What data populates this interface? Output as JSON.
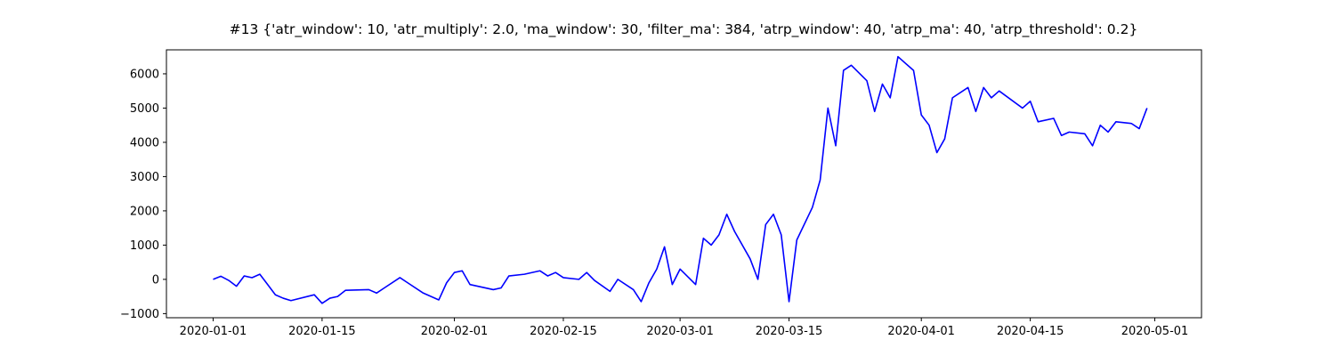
{
  "chart_data": {
    "type": "line",
    "title": "#13 {'atr_window': 10, 'atr_multiply': 2.0, 'ma_window': 30, 'filter_ma': 384, 'atrp_window': 40, 'atrp_ma': 40, 'atrp_threshold': 0.2}",
    "x": [
      "2020-01-01",
      "2020-01-02",
      "2020-01-03",
      "2020-01-04",
      "2020-01-05",
      "2020-01-06",
      "2020-01-07",
      "2020-01-08",
      "2020-01-09",
      "2020-01-10",
      "2020-01-11",
      "2020-01-14",
      "2020-01-15",
      "2020-01-16",
      "2020-01-17",
      "2020-01-18",
      "2020-01-21",
      "2020-01-22",
      "2020-01-23",
      "2020-01-25",
      "2020-01-26",
      "2020-01-28",
      "2020-01-30",
      "2020-01-31",
      "2020-02-01",
      "2020-02-02",
      "2020-02-03",
      "2020-02-06",
      "2020-02-07",
      "2020-02-08",
      "2020-02-10",
      "2020-02-12",
      "2020-02-13",
      "2020-02-14",
      "2020-02-15",
      "2020-02-17",
      "2020-02-18",
      "2020-02-19",
      "2020-02-21",
      "2020-02-22",
      "2020-02-24",
      "2020-02-25",
      "2020-02-26",
      "2020-02-27",
      "2020-02-28",
      "2020-02-29",
      "2020-03-01",
      "2020-03-03",
      "2020-03-04",
      "2020-03-05",
      "2020-03-06",
      "2020-03-07",
      "2020-03-08",
      "2020-03-10",
      "2020-03-11",
      "2020-03-12",
      "2020-03-13",
      "2020-03-14",
      "2020-03-15",
      "2020-03-16",
      "2020-03-18",
      "2020-03-19",
      "2020-03-20",
      "2020-03-21",
      "2020-03-22",
      "2020-03-23",
      "2020-03-25",
      "2020-03-26",
      "2020-03-27",
      "2020-03-28",
      "2020-03-29",
      "2020-03-31",
      "2020-04-01",
      "2020-04-02",
      "2020-04-03",
      "2020-04-04",
      "2020-04-05",
      "2020-04-07",
      "2020-04-08",
      "2020-04-09",
      "2020-04-10",
      "2020-04-11",
      "2020-04-14",
      "2020-04-15",
      "2020-04-16",
      "2020-04-18",
      "2020-04-19",
      "2020-04-20",
      "2020-04-22",
      "2020-04-23",
      "2020-04-24",
      "2020-04-25",
      "2020-04-26",
      "2020-04-28",
      "2020-04-29",
      "2020-04-30"
    ],
    "series": [
      {
        "color": "#0000ff",
        "values": [
          0,
          90,
          -30,
          -200,
          100,
          50,
          150,
          -150,
          -450,
          -550,
          -620,
          -450,
          -700,
          -550,
          -500,
          -320,
          -300,
          -400,
          -250,
          50,
          -100,
          -400,
          -600,
          -100,
          200,
          250,
          -150,
          -300,
          -250,
          100,
          150,
          250,
          100,
          200,
          50,
          0,
          200,
          -30,
          -350,
          0,
          -300,
          -650,
          -100,
          300,
          950,
          -150,
          300,
          -150,
          1200,
          1000,
          1300,
          1900,
          1400,
          600,
          0,
          1600,
          1900,
          1300,
          -650,
          1150,
          2100,
          2900,
          5000,
          3900,
          6100,
          6250,
          5800,
          4900,
          5700,
          5300,
          6500,
          6100,
          4800,
          4500,
          3700,
          4100,
          5300,
          5600,
          4900,
          5600,
          5300,
          5500,
          5000,
          5200,
          4600,
          4700,
          4200,
          4300,
          4250,
          3900,
          4500,
          4300,
          4600,
          4550,
          4400,
          5000
        ]
      }
    ],
    "xlim": [
      "2019-12-26",
      "2020-05-07"
    ],
    "xticks": [
      "2020-01-01",
      "2020-01-15",
      "2020-02-01",
      "2020-02-15",
      "2020-03-01",
      "2020-03-15",
      "2020-04-01",
      "2020-04-15",
      "2020-05-01"
    ],
    "ylim": [
      -1120,
      6700
    ],
    "yticks": [
      {
        "value": -1000,
        "label": "−1000"
      },
      0,
      1000,
      2000,
      3000,
      4000,
      5000,
      6000
    ]
  }
}
